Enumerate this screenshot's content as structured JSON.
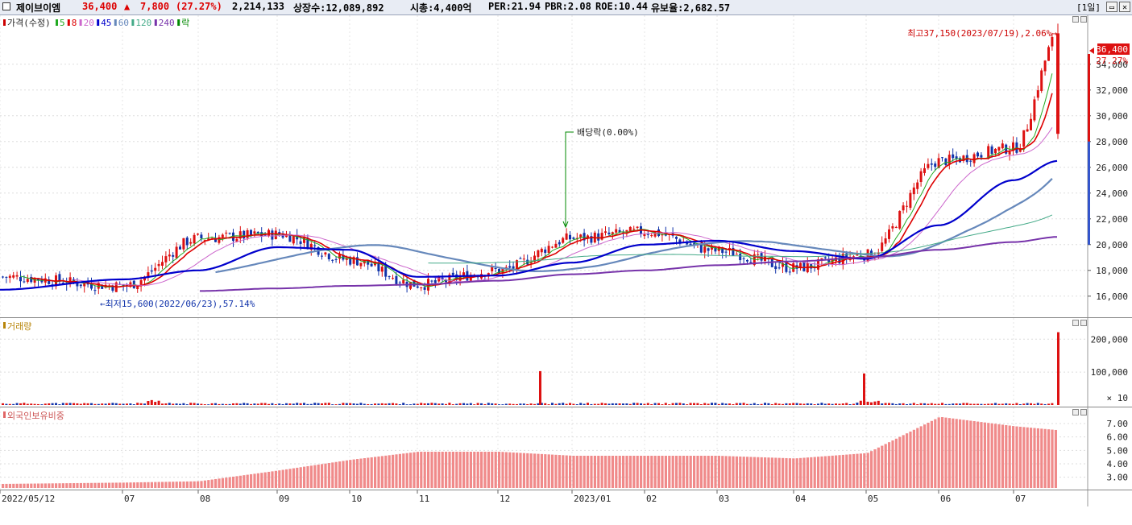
{
  "header": {
    "stock_name": "제이브이엠",
    "price": "36,400",
    "change_arrow": "▲",
    "change": "7,800",
    "change_pct": "(27.27%)",
    "volume": "2,214,133",
    "shares_listed": "상장수:12,089,892",
    "market_cap": "시총:4,400억",
    "per": "PER:21.94",
    "pbr": "PBR:2.08",
    "roe": "ROE:10.44",
    "float": "유보율:2,682.57",
    "period": "[1일]",
    "min_icon": "minimize-icon",
    "close_icon": "close-icon"
  },
  "price_panel": {
    "legend": [
      {
        "label": "가격(수정)",
        "color": "#cc0000"
      },
      {
        "label": "5",
        "color": "#22aa22"
      },
      {
        "label": "8",
        "color": "#dd0000"
      },
      {
        "label": "20",
        "color": "#cc66cc"
      },
      {
        "label": "45",
        "color": "#0000cc"
      },
      {
        "label": "60",
        "color": "#6688bb"
      },
      {
        "label": "120",
        "color": "#44aa88"
      },
      {
        "label": "240",
        "color": "#7733aa"
      },
      {
        "label": "락",
        "color": "#008800"
      }
    ],
    "high_annotation": "최고37,150(2023/07/19),2.06%→",
    "low_annotation": "←최저15,600(2022/06/23),57.14%",
    "dividend_annotation": "배당락(0.00%)",
    "current_price_label": "36,400",
    "current_pct_label": "27.27%"
  },
  "volume_panel": {
    "title": "거래량",
    "unit_label": "× 10"
  },
  "foreign_panel": {
    "title": "외국인보유비중"
  },
  "x_labels": [
    "2022/05/12",
    "07",
    "08",
    "09",
    "10",
    "11",
    "12",
    "2023/01",
    "02",
    "03",
    "04",
    "05",
    "06",
    "07"
  ],
  "colors": {
    "up": "#dd1111",
    "down": "#1133aa",
    "foreign_bar": "#f08a8a",
    "axis_text": "#222222"
  },
  "chart_data": [
    {
      "type": "line",
      "title": "가격(수정)",
      "x": [
        "2022/05/12",
        "2022/07",
        "2022/08",
        "2022/09",
        "2022/10",
        "2022/11",
        "2022/12",
        "2023/01",
        "2023/02",
        "2023/03",
        "2023/04",
        "2023/05",
        "2023/06",
        "2023/07",
        "2023/07/19"
      ],
      "series": [
        {
          "name": "가격(수정)",
          "values": [
            17500,
            16800,
            20500,
            20800,
            18800,
            16900,
            18000,
            20500,
            21000,
            19500,
            18200,
            19200,
            26500,
            27500,
            36400
          ]
        },
        {
          "name": "45",
          "values": [
            16500,
            17300,
            18000,
            19800,
            19600,
            17500,
            17600,
            18600,
            20000,
            20300,
            19500,
            18900,
            21500,
            25000,
            26500
          ]
        },
        {
          "name": "240",
          "values": [
            null,
            null,
            16400,
            16600,
            16800,
            16900,
            17200,
            17700,
            18000,
            18400,
            18700,
            19000,
            19600,
            20200,
            20600
          ]
        }
      ],
      "yticks": [
        16000,
        18000,
        20000,
        22000,
        24000,
        26000,
        28000,
        30000,
        32000,
        34000
      ],
      "ylim": [
        14800,
        37300
      ],
      "annotations": [
        "최고37,150(2023/07/19),2.06%→",
        "←최저15,600(2022/06/23),57.14%",
        "배당락(0.00%)"
      ]
    },
    {
      "type": "bar",
      "title": "거래량",
      "categories": [
        "2022/12 spike",
        "2023/04 spike",
        "2023/07/19"
      ],
      "values": [
        103000,
        96000,
        221413
      ],
      "yticks": [
        100000,
        200000
      ],
      "unit": "× 10"
    },
    {
      "type": "bar",
      "title": "외국인보유비중",
      "categories": [
        "2022/05",
        "2022/06",
        "2022/07",
        "2022/08",
        "2022/09",
        "2022/10",
        "2022/11",
        "2022/12",
        "2023/01",
        "2023/02",
        "2023/03",
        "2023/04",
        "2023/05",
        "2023/06",
        "2023/07"
      ],
      "values": [
        2.5,
        2.6,
        2.7,
        3.5,
        4.3,
        4.9,
        4.9,
        4.6,
        4.6,
        4.6,
        4.4,
        4.8,
        7.5,
        6.8,
        6.5
      ],
      "yticks": [
        3.0,
        4.0,
        5.0,
        6.0,
        7.0
      ]
    }
  ]
}
